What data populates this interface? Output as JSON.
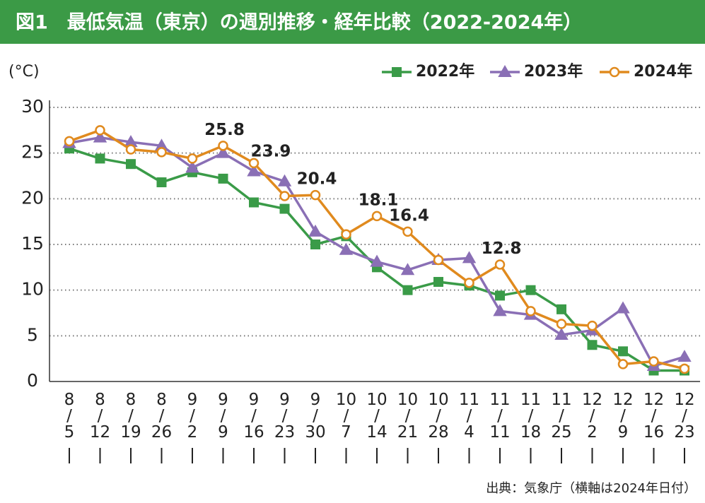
{
  "chart_data": {
    "type": "line",
    "title": "図1　最低気温（東京）の週別推移・経年比較（2022-2024年）",
    "y_unit": "(°C)",
    "source": "出典：気象庁（横軸は2024年日付）",
    "categories": [
      "8/5",
      "8/12",
      "8/19",
      "8/26",
      "9/2",
      "9/9",
      "9/16",
      "9/23",
      "9/30",
      "10/7",
      "10/14",
      "10/21",
      "10/28",
      "11/4",
      "11/11",
      "11/18",
      "11/25",
      "12/2",
      "12/9",
      "12/16",
      "12/23"
    ],
    "series": [
      {
        "name": "2022年",
        "color": "#3a9b48",
        "marker": "square",
        "values": [
          25.5,
          24.4,
          23.8,
          21.8,
          22.9,
          22.2,
          19.6,
          18.9,
          15.0,
          15.9,
          12.5,
          10.0,
          10.9,
          10.5,
          9.4,
          10.0,
          7.9,
          4.0,
          3.3,
          1.2,
          1.2
        ]
      },
      {
        "name": "2023年",
        "color": "#8a6fb5",
        "marker": "triangle",
        "values": [
          26.1,
          26.7,
          26.2,
          25.8,
          23.4,
          25.0,
          23.0,
          21.9,
          16.4,
          14.4,
          13.1,
          12.2,
          13.3,
          13.5,
          7.7,
          7.3,
          5.1,
          5.6,
          8.0,
          1.7,
          2.7
        ]
      },
      {
        "name": "2024年",
        "color": "#e08a1e",
        "marker": "circle",
        "values": [
          26.3,
          27.5,
          25.4,
          25.1,
          24.4,
          25.8,
          23.9,
          20.3,
          20.4,
          16.1,
          18.1,
          16.4,
          13.3,
          10.8,
          12.8,
          7.7,
          6.3,
          6.1,
          1.9,
          2.2,
          1.4
        ],
        "value_labels": [
          null,
          null,
          null,
          null,
          null,
          "25.8",
          "23.9",
          null,
          "20.4",
          null,
          "18.1",
          "16.4",
          null,
          null,
          "12.8",
          null,
          null,
          null,
          null,
          null,
          null
        ]
      }
    ],
    "ylim": [
      0,
      30
    ],
    "yticks": [
      0,
      5,
      10,
      15,
      20,
      25,
      30
    ],
    "grid": true,
    "legend": "top-right"
  }
}
